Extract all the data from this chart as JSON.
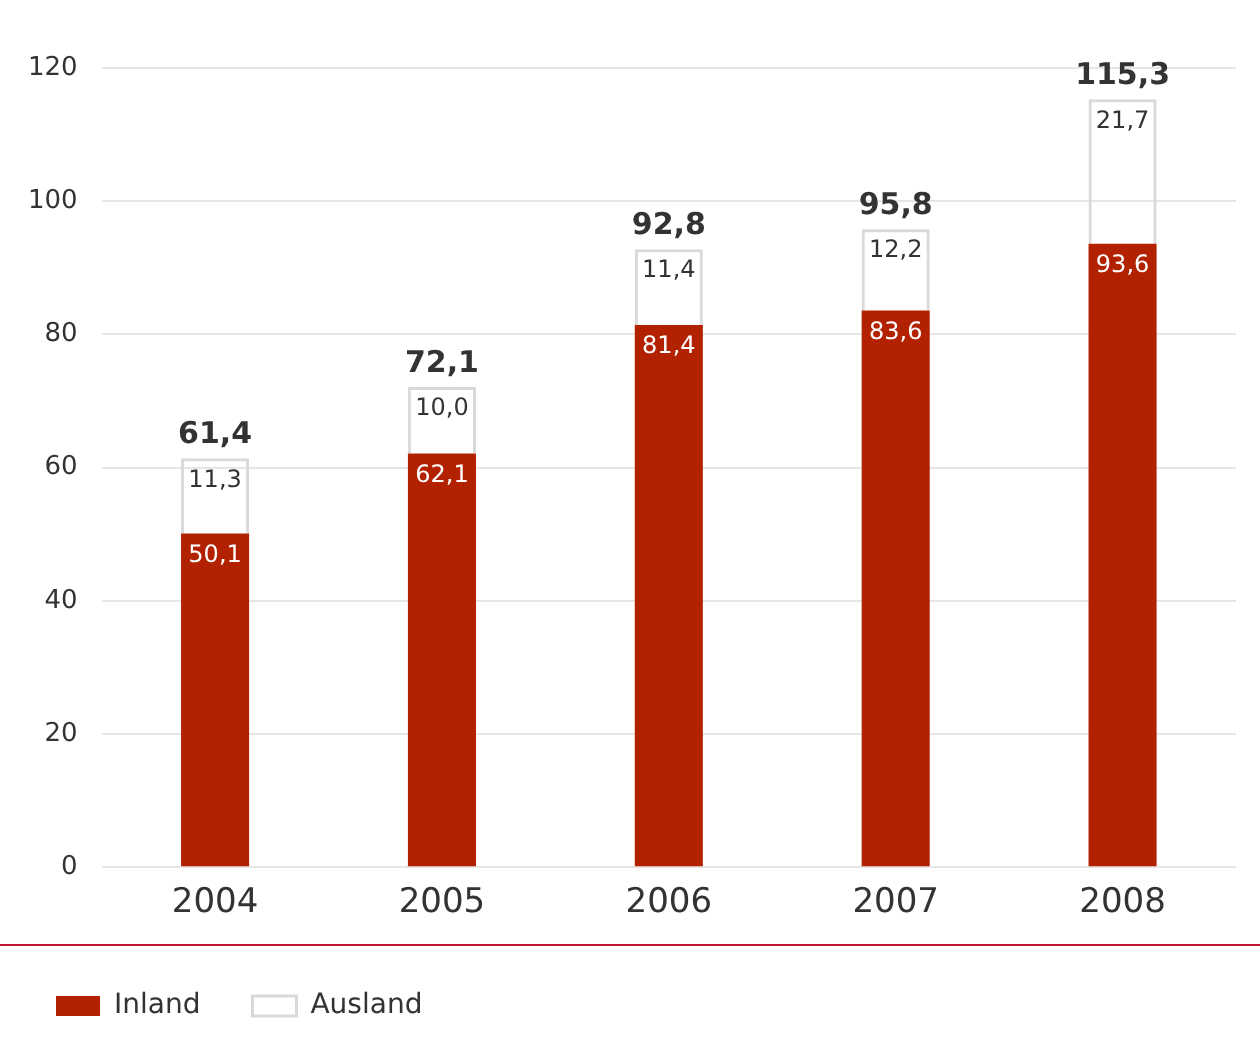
{
  "chart_data": {
    "type": "bar",
    "stacked": true,
    "categories": [
      "2004",
      "2005",
      "2006",
      "2007",
      "2008"
    ],
    "series": [
      {
        "name": "Inland",
        "color": "#b22200",
        "values": [
          50.1,
          62.1,
          81.4,
          83.6,
          93.6
        ],
        "value_labels": [
          "50,1",
          "62,1",
          "81,4",
          "83,6",
          "93,6"
        ]
      },
      {
        "name": "Ausland",
        "color": "#d9d9d9",
        "values": [
          11.3,
          10.0,
          11.4,
          12.2,
          21.7
        ],
        "value_labels": [
          "11,3",
          "10,0",
          "11,4",
          "12,2",
          "21,7"
        ]
      }
    ],
    "totals": [
      "61,4",
      "72,1",
      "92,8",
      "95,8",
      "115,3"
    ],
    "ylim": [
      0,
      120
    ],
    "yticks": [
      0,
      20,
      40,
      60,
      80,
      100,
      120
    ],
    "grid": "y",
    "legend": "bottom left"
  }
}
